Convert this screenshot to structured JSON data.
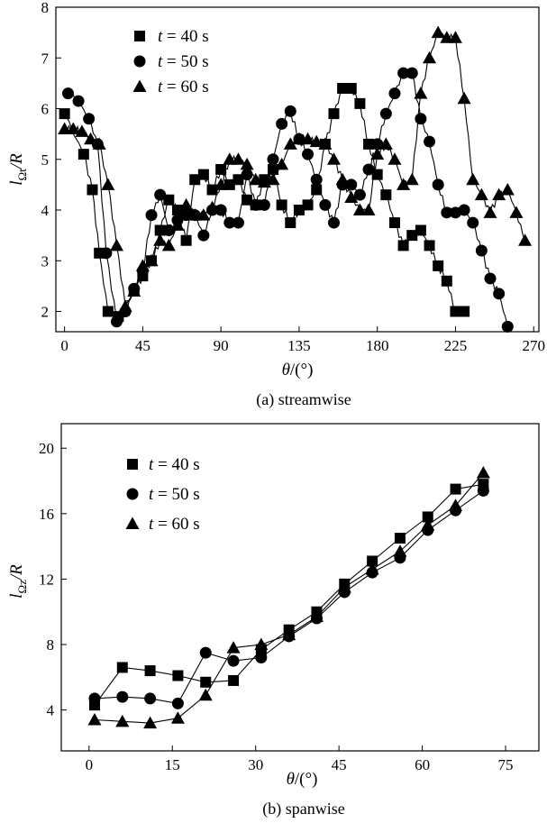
{
  "chart_data": [
    {
      "id": "a",
      "type": "line",
      "caption": "(a) streamwise",
      "ylabel": "l_{Ωt}/R",
      "ylabel_main": "l",
      "ylabel_sub": "Ωt",
      "ylabel_tail": "/R",
      "xlabel": "θ/(°)",
      "xlim": [
        -5,
        273
      ],
      "ylim": [
        1.6,
        8
      ],
      "xticks": [
        0,
        45,
        90,
        135,
        180,
        225,
        270
      ],
      "yticks": [
        2,
        3,
        4,
        5,
        6,
        7,
        8
      ],
      "legend": [
        "t = 40 s",
        "t = 50 s",
        "t = 60 s"
      ],
      "series": [
        {
          "name": "t = 40 s",
          "marker": "square",
          "x": [
            0,
            11,
            16,
            20,
            25,
            31,
            40,
            45,
            50,
            55,
            60,
            65,
            70,
            75,
            80,
            85,
            90,
            95,
            100,
            105,
            110,
            115,
            120,
            125,
            130,
            135,
            140,
            145,
            150,
            155,
            160,
            165,
            170,
            175,
            180,
            185,
            190,
            195,
            200,
            205,
            210,
            215,
            220,
            225,
            230
          ],
          "y": [
            5.9,
            5.1,
            4.4,
            3.15,
            2.0,
            1.9,
            2.4,
            2.7,
            3.0,
            3.6,
            4.2,
            4.0,
            3.4,
            4.6,
            4.7,
            4.4,
            4.8,
            4.5,
            4.6,
            4.2,
            4.1,
            4.6,
            4.8,
            4.1,
            3.75,
            4.0,
            4.1,
            4.4,
            5.3,
            5.9,
            6.4,
            6.4,
            6.1,
            5.3,
            4.7,
            4.3,
            3.75,
            3.3,
            3.5,
            3.6,
            3.3,
            2.9,
            2.6,
            2.0,
            2.0
          ]
        },
        {
          "name": "t = 50 s",
          "marker": "circle",
          "x": [
            2,
            8,
            14,
            19,
            24,
            30,
            35,
            40,
            45,
            50,
            55,
            60,
            65,
            70,
            75,
            80,
            85,
            90,
            95,
            100,
            105,
            110,
            115,
            120,
            125,
            130,
            135,
            140,
            145,
            150,
            155,
            160,
            165,
            170,
            175,
            180,
            185,
            190,
            195,
            200,
            205,
            210,
            215,
            220,
            225,
            230,
            235,
            240,
            245,
            250,
            255
          ],
          "y": [
            6.3,
            6.15,
            5.8,
            5.3,
            3.15,
            1.8,
            2.0,
            2.45,
            2.8,
            3.9,
            4.3,
            3.6,
            3.8,
            3.9,
            3.9,
            3.5,
            4.0,
            4.0,
            3.75,
            3.75,
            4.7,
            4.1,
            4.1,
            5.0,
            5.7,
            5.95,
            5.4,
            5.1,
            4.6,
            4.1,
            3.75,
            4.5,
            4.5,
            4.3,
            4.8,
            5.3,
            5.9,
            6.3,
            6.7,
            6.7,
            5.8,
            5.35,
            4.5,
            3.95,
            3.95,
            4.0,
            3.75,
            3.2,
            2.65,
            2.35,
            1.7
          ]
        },
        {
          "name": "t = 60 s",
          "marker": "triangle",
          "x": [
            0,
            5,
            10,
            15,
            20,
            25,
            30,
            35,
            40,
            45,
            50,
            55,
            60,
            65,
            70,
            75,
            80,
            85,
            90,
            95,
            100,
            105,
            110,
            115,
            120,
            125,
            130,
            135,
            140,
            145,
            150,
            155,
            160,
            165,
            170,
            175,
            180,
            185,
            190,
            195,
            200,
            205,
            210,
            215,
            220,
            225,
            230,
            235,
            240,
            245,
            250,
            255,
            260,
            265
          ],
          "y": [
            5.6,
            5.6,
            5.55,
            5.4,
            5.3,
            4.5,
            3.3,
            2.1,
            2.4,
            2.9,
            3.0,
            3.4,
            3.3,
            3.7,
            4.1,
            3.9,
            3.9,
            4.05,
            4.5,
            5.0,
            5.0,
            4.9,
            4.6,
            4.55,
            4.6,
            4.9,
            5.3,
            5.4,
            5.4,
            5.35,
            5.3,
            5.0,
            4.6,
            4.25,
            4.0,
            4.0,
            5.1,
            5.3,
            5.0,
            4.5,
            4.6,
            6.3,
            7.0,
            7.5,
            7.4,
            7.4,
            6.2,
            4.6,
            4.3,
            3.95,
            4.3,
            4.4,
            3.95,
            3.4
          ]
        }
      ]
    },
    {
      "id": "b",
      "type": "line",
      "caption": "(b) spanwise",
      "ylabel": "l_{Ωz}/R",
      "ylabel_main": "l",
      "ylabel_sub": "Ωz",
      "ylabel_tail": "/R",
      "xlabel": "θ/(°)",
      "xlim": [
        -5,
        81
      ],
      "ylim": [
        1.5,
        21.5
      ],
      "xticks": [
        0,
        15,
        30,
        45,
        60,
        75
      ],
      "yticks": [
        4,
        8,
        12,
        16,
        20
      ],
      "legend": [
        "t = 40 s",
        "t = 50 s",
        "t = 60 s"
      ],
      "series": [
        {
          "name": "t = 40 s",
          "marker": "square",
          "x": [
            1,
            6,
            11,
            16,
            21,
            26,
            31,
            36,
            41,
            46,
            51,
            56,
            61,
            66,
            71
          ],
          "y": [
            4.3,
            6.6,
            6.4,
            6.1,
            5.7,
            5.8,
            7.7,
            8.9,
            10.0,
            11.7,
            13.1,
            14.5,
            15.8,
            17.5,
            17.8
          ]
        },
        {
          "name": "t = 50 s",
          "marker": "circle",
          "x": [
            1,
            6,
            11,
            16,
            21,
            26,
            31,
            36,
            41,
            46,
            51,
            56,
            61,
            66,
            71
          ],
          "y": [
            4.7,
            4.8,
            4.7,
            4.4,
            7.5,
            7.0,
            7.2,
            8.5,
            9.6,
            11.2,
            12.4,
            13.3,
            15.0,
            16.2,
            17.4
          ]
        },
        {
          "name": "t = 60 s",
          "marker": "triangle",
          "x": [
            1,
            6,
            11,
            16,
            21,
            26,
            31,
            36,
            41,
            46,
            51,
            56,
            61,
            66,
            71
          ],
          "y": [
            3.4,
            3.3,
            3.2,
            3.5,
            4.9,
            7.8,
            8.0,
            8.6,
            9.7,
            11.5,
            12.6,
            13.7,
            15.3,
            16.5,
            18.5
          ]
        }
      ]
    }
  ]
}
